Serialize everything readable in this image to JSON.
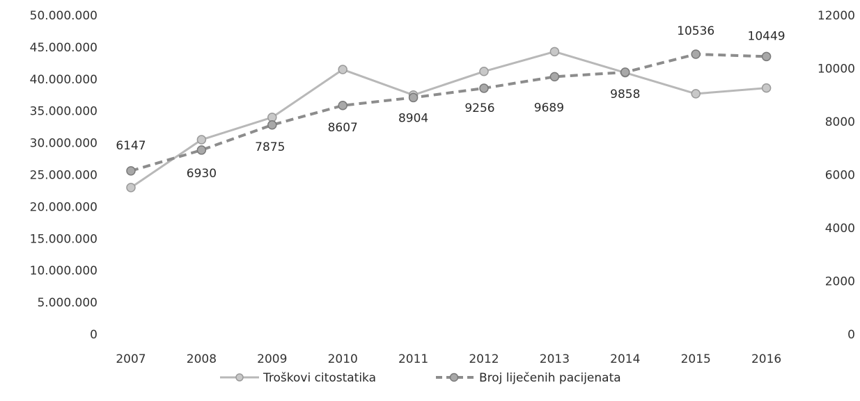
{
  "chart_data": {
    "type": "line",
    "categories": [
      "2007",
      "2008",
      "2009",
      "2010",
      "2011",
      "2012",
      "2013",
      "2014",
      "2015",
      "2016"
    ],
    "y_left": {
      "ylim": [
        0,
        50000000
      ],
      "ticks": [
        0,
        5000000,
        10000000,
        15000000,
        20000000,
        25000000,
        30000000,
        35000000,
        40000000,
        45000000,
        50000000
      ],
      "tick_labels": [
        "0",
        "5.000.000",
        "10.000.000",
        "15.000.000",
        "20.000.000",
        "25.000.000",
        "30.000.000",
        "35.000.000",
        "40.000.000",
        "45.000.000",
        "50.000.000"
      ]
    },
    "y_right": {
      "ylim": [
        0,
        12000
      ],
      "ticks": [
        0,
        2000,
        4000,
        6000,
        8000,
        10000,
        12000
      ],
      "tick_labels": [
        "0",
        "2000",
        "4000",
        "6000",
        "8000",
        "10000",
        "12000"
      ]
    },
    "series": [
      {
        "name": "Troškovi citostatika",
        "axis": "left",
        "style": "solid",
        "color": "#b8b8b8",
        "values": [
          23000000,
          30500000,
          34000000,
          41500000,
          37500000,
          41200000,
          44300000,
          41000000,
          37700000,
          38600000
        ]
      },
      {
        "name": "Broj liječenih pacijenata",
        "axis": "right",
        "style": "dashed",
        "color": "#8c8c8c",
        "values": [
          6147,
          6930,
          7875,
          8607,
          8904,
          9256,
          9689,
          9858,
          10536,
          10449
        ],
        "data_labels": [
          "6147",
          "6930",
          "7875",
          "8607",
          "8904",
          "9256",
          "9689",
          "9858",
          "10536",
          "10449"
        ]
      }
    ],
    "legend": {
      "position": "bottom",
      "entries": [
        "Troškovi citostatika",
        "Broj liječenih pacijenata"
      ]
    },
    "grid": false
  }
}
